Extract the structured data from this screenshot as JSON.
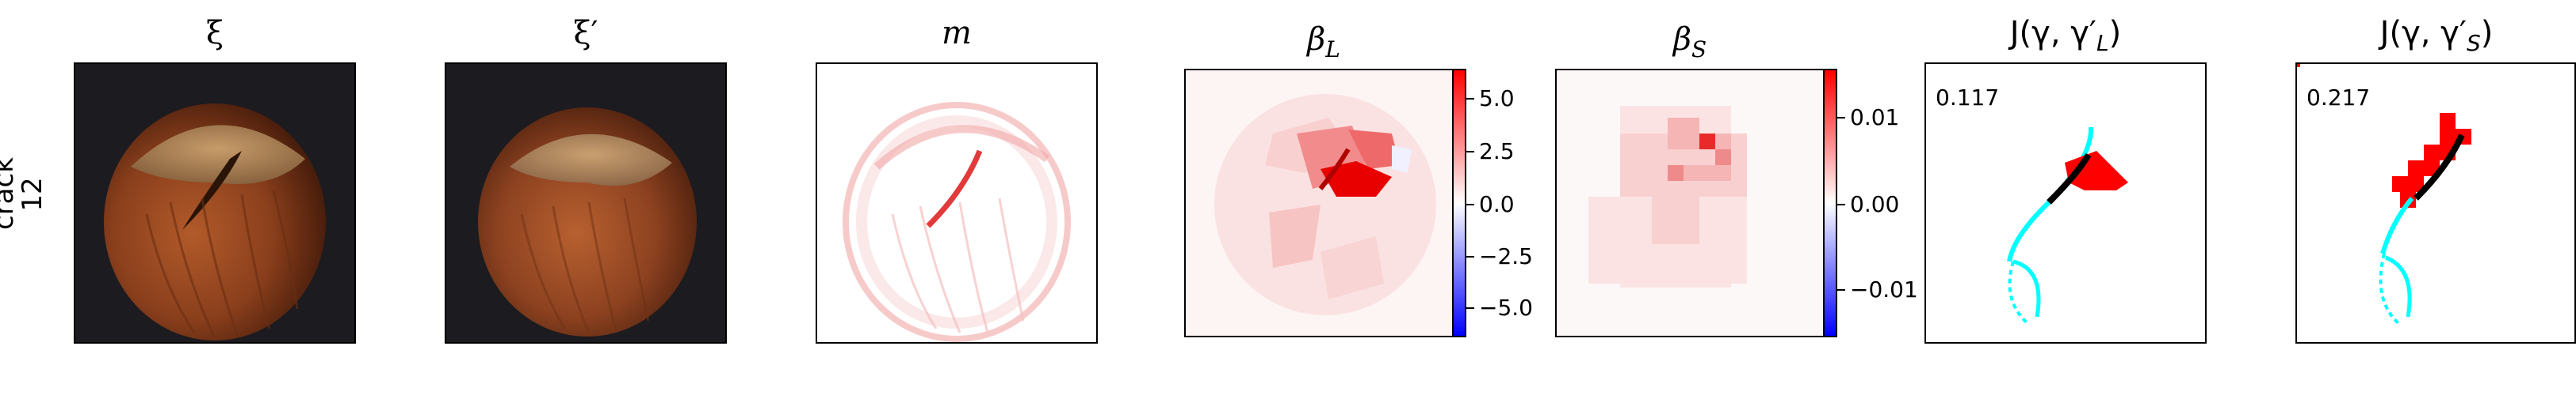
{
  "row_label": {
    "line1": "crack",
    "line2": "12"
  },
  "panels": [
    {
      "title": "ξ"
    },
    {
      "title": "ξ′"
    },
    {
      "title": "m"
    },
    {
      "title": "β",
      "sub": "L"
    },
    {
      "title": "β",
      "sub": "S"
    },
    {
      "title_main": "J(γ, γ′",
      "title_sub": "L",
      "title_end": ")",
      "score": "0.117"
    },
    {
      "title_main": "J(γ, γ′",
      "title_sub": "S",
      "title_end": ")",
      "score": "0.217"
    }
  ],
  "colorbar_L": {
    "ticks": [
      "5.0",
      "2.5",
      "0.0",
      "−2.5",
      "−5.0"
    ]
  },
  "colorbar_S": {
    "ticks": [
      "0.01",
      "0.00",
      "−0.01"
    ]
  },
  "colors": {
    "positive": "#ff0000",
    "negative": "#0000ff",
    "contour": "#00ffff",
    "background_photo": "#1c1b20",
    "hazelnut": "#8a3f1c"
  }
}
